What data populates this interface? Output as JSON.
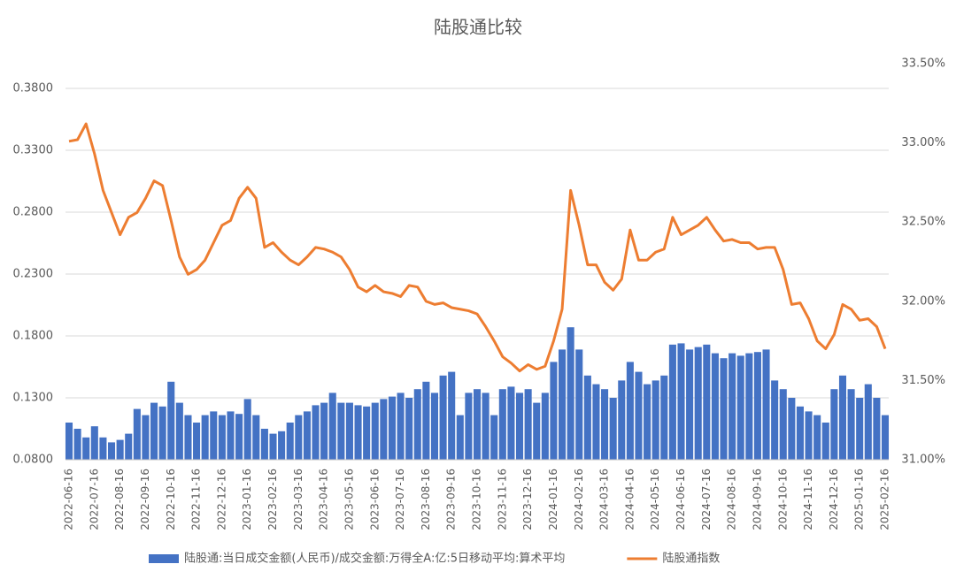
{
  "chart_data": {
    "type": "combo",
    "title": "陆股通比较",
    "categories": [
      "2022-06-16",
      null,
      null,
      "2022-07-16",
      null,
      null,
      "2022-08-16",
      null,
      null,
      "2022-09-16",
      null,
      null,
      "2022-10-16",
      null,
      null,
      "2022-11-16",
      null,
      null,
      "2022-12-16",
      null,
      null,
      "2023-01-16",
      null,
      null,
      "2023-02-16",
      null,
      null,
      "2023-03-16",
      null,
      null,
      "2023-04-16",
      null,
      null,
      "2023-05-16",
      null,
      null,
      "2023-06-16",
      null,
      null,
      "2023-07-16",
      null,
      null,
      "2023-08-16",
      null,
      null,
      "2023-09-16",
      null,
      null,
      "2023-10-16",
      null,
      null,
      "2023-11-16",
      null,
      null,
      "2023-12-16",
      null,
      null,
      "2024-01-16",
      null,
      null,
      "2024-02-16",
      null,
      null,
      "2024-03-16",
      null,
      null,
      "2024-04-16",
      null,
      null,
      "2024-05-16",
      null,
      null,
      "2024-06-16",
      null,
      null,
      "2024-07-16",
      null,
      null,
      "2024-08-16",
      null,
      null,
      "2024-09-16",
      null,
      null,
      "2024-10-16",
      null,
      null,
      "2024-11-16",
      null,
      null,
      "2024-12-16",
      null,
      null,
      "2025-01-16",
      null,
      null,
      "2025-02-16"
    ],
    "series": [
      {
        "name": "陆股通:当日成交金额(人民币)/成交金额:万得全A:亿:5日移动平均:算术平均",
        "type": "bar",
        "color": "#4472c4",
        "values": [
          0.11,
          0.105,
          0.098,
          0.107,
          0.098,
          0.094,
          0.096,
          0.101,
          0.121,
          0.116,
          0.126,
          0.123,
          0.143,
          0.126,
          0.116,
          0.11,
          0.116,
          0.119,
          0.116,
          0.119,
          0.117,
          0.129,
          0.116,
          0.105,
          0.101,
          0.103,
          0.11,
          0.116,
          0.119,
          0.124,
          0.126,
          0.134,
          0.126,
          0.126,
          0.124,
          0.123,
          0.126,
          0.129,
          0.131,
          0.134,
          0.13,
          0.137,
          0.143,
          0.134,
          0.148,
          0.151,
          0.116,
          0.134,
          0.137,
          0.134,
          0.116,
          0.137,
          0.139,
          0.134,
          0.137,
          0.126,
          0.134,
          0.159,
          0.169,
          0.187,
          0.169,
          0.148,
          0.141,
          0.137,
          0.13,
          0.144,
          0.159,
          0.151,
          0.141,
          0.144,
          0.148,
          0.173,
          0.174,
          0.169,
          0.171,
          0.173,
          0.166,
          0.162,
          0.166,
          0.164,
          0.166,
          0.167,
          0.169,
          0.144,
          0.137,
          0.13,
          0.123,
          0.119,
          0.116,
          0.11,
          0.137,
          0.148,
          0.137,
          0.13,
          0.141,
          0.13,
          0.116
        ]
      },
      {
        "name": "陆股通指数",
        "type": "line",
        "axis": "y2",
        "color": "#ed7d31",
        "values": [
          33.01,
          33.02,
          33.12,
          32.93,
          32.7,
          32.56,
          32.42,
          32.53,
          32.56,
          32.65,
          32.76,
          32.73,
          32.51,
          32.28,
          32.17,
          32.2,
          32.26,
          32.37,
          32.48,
          32.51,
          32.65,
          32.72,
          32.65,
          32.34,
          32.37,
          32.31,
          32.26,
          32.23,
          32.28,
          32.34,
          32.33,
          32.31,
          32.28,
          32.2,
          32.09,
          32.06,
          32.1,
          32.06,
          32.05,
          32.03,
          32.1,
          32.09,
          32.0,
          31.98,
          31.99,
          31.96,
          31.95,
          31.94,
          31.92,
          31.84,
          31.75,
          31.65,
          31.61,
          31.56,
          31.6,
          31.57,
          31.59,
          31.75,
          31.95,
          32.7,
          32.48,
          32.23,
          32.23,
          32.12,
          32.07,
          32.14,
          32.45,
          32.26,
          32.26,
          32.31,
          32.33,
          32.53,
          32.42,
          32.45,
          32.48,
          32.53,
          32.45,
          32.38,
          32.39,
          32.37,
          32.37,
          32.33,
          32.34,
          32.34,
          32.2,
          31.98,
          31.99,
          31.89,
          31.75,
          31.7,
          31.79,
          31.98,
          31.95,
          31.88,
          31.89,
          31.84,
          31.7
        ]
      }
    ],
    "ylim": [
      0.08,
      0.38
    ],
    "yticks": [
      {
        "value": 0.08,
        "label": "0.0800"
      },
      {
        "value": 0.13,
        "label": "0.1300"
      },
      {
        "value": 0.18,
        "label": "0.1800"
      },
      {
        "value": 0.23,
        "label": "0.2300"
      },
      {
        "value": 0.28,
        "label": "0.2800"
      },
      {
        "value": 0.33,
        "label": "0.3300"
      },
      {
        "value": 0.38,
        "label": "0.3800"
      }
    ],
    "y2lim": [
      31.0,
      33.5
    ],
    "y2ticks": [
      {
        "value": 31,
        "label": "31.00%"
      },
      {
        "value": 31.5,
        "label": "31.50%"
      },
      {
        "value": 32,
        "label": "32.00%"
      },
      {
        "value": 32.5,
        "label": "32.50%"
      },
      {
        "value": 33,
        "label": "33.00%"
      },
      {
        "value": 33.5,
        "label": "33.50%"
      }
    ],
    "grid": true,
    "legend": "bottom"
  }
}
